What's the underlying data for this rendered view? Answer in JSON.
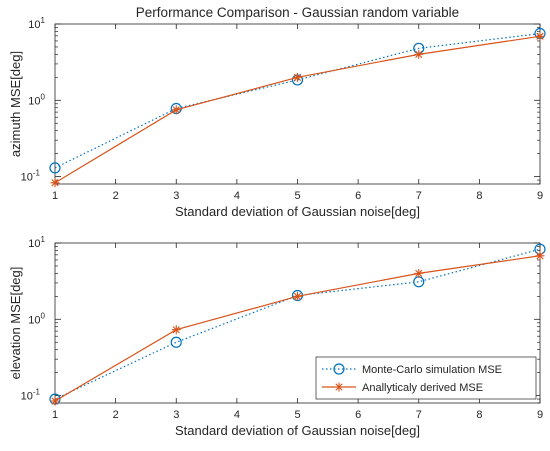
{
  "colors": {
    "monte_carlo": "#0072BD",
    "analytic": "#D95319",
    "axis": "#262626",
    "grid": "#000000",
    "background": "#ffffff"
  },
  "chart_data": [
    {
      "type": "line",
      "title": "Performance Comparison - Gaussian random variable",
      "xlabel": "Standard deviation of Gaussian noise[deg]",
      "ylabel": "azimuth MSE[deg]",
      "x": [
        1,
        3,
        5,
        7,
        9
      ],
      "xlim": [
        1,
        9
      ],
      "xticks": [
        "1",
        "2",
        "3",
        "4",
        "5",
        "6",
        "7",
        "8",
        "9"
      ],
      "yscale": "log",
      "ylim": [
        0.08,
        10
      ],
      "yticks": [
        {
          "value": 0.1,
          "base": "10",
          "exp": "-1"
        },
        {
          "value": 1,
          "base": "10",
          "exp": "0"
        },
        {
          "value": 10,
          "base": "10",
          "exp": "1"
        }
      ],
      "grid": false,
      "legend": null,
      "series": [
        {
          "name": "Monte-Carlo simulation MSE",
          "values": [
            0.13,
            0.78,
            1.85,
            4.8,
            7.5
          ],
          "style": "dotted",
          "marker": "circle",
          "color": "#0072BD"
        },
        {
          "name": "Anallyticaly derived MSE",
          "values": [
            0.083,
            0.75,
            2.0,
            4.0,
            6.9
          ],
          "style": "solid",
          "marker": "star",
          "color": "#D95319"
        }
      ]
    },
    {
      "type": "line",
      "title": "",
      "xlabel": "Standard deviation of Gaussian noise[deg]",
      "ylabel": "elevation MSE[deg]",
      "x": [
        1,
        3,
        5,
        7,
        9
      ],
      "xlim": [
        1,
        9
      ],
      "xticks": [
        "1",
        "2",
        "3",
        "4",
        "5",
        "6",
        "7",
        "8",
        "9"
      ],
      "yscale": "log",
      "ylim": [
        0.08,
        10
      ],
      "yticks": [
        {
          "value": 0.1,
          "base": "10",
          "exp": "-1"
        },
        {
          "value": 1,
          "base": "10",
          "exp": "0"
        },
        {
          "value": 10,
          "base": "10",
          "exp": "1"
        }
      ],
      "grid": false,
      "legend": {
        "position": "bottom-right",
        "entries": [
          "Monte-Carlo simulation MSE",
          "Anallyticaly derived MSE"
        ]
      },
      "series": [
        {
          "name": "Monte-Carlo simulation MSE",
          "values": [
            0.09,
            0.5,
            2.05,
            3.1,
            8.3
          ],
          "style": "dotted",
          "marker": "circle",
          "color": "#0072BD"
        },
        {
          "name": "Anallyticaly derived MSE",
          "values": [
            0.085,
            0.73,
            2.0,
            4.0,
            6.8
          ],
          "style": "solid",
          "marker": "star",
          "color": "#D95319"
        }
      ]
    }
  ]
}
